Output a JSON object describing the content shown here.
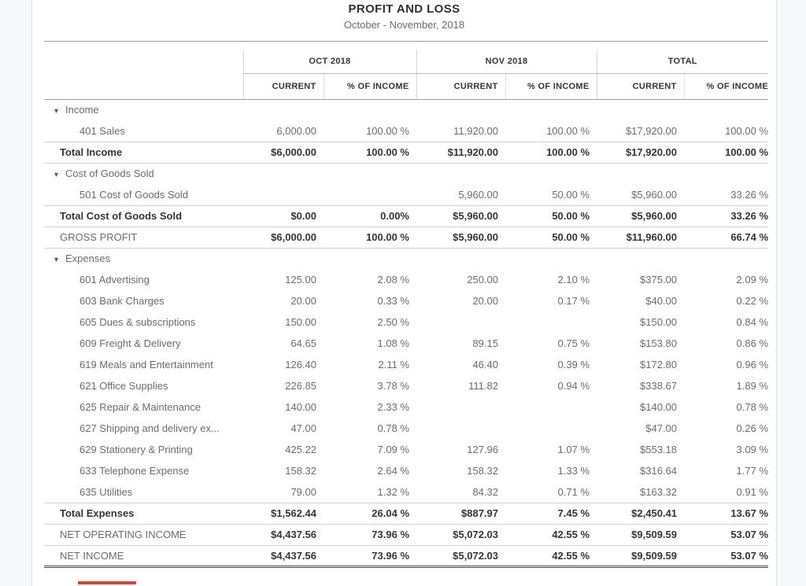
{
  "report": {
    "title": "PROFIT AND LOSS",
    "subtitle": "October - November, 2018"
  },
  "table": {
    "column_groups": [
      {
        "label": "OCT 2018"
      },
      {
        "label": "NOV 2018"
      },
      {
        "label": "TOTAL"
      }
    ],
    "sub_headers": [
      "CURRENT",
      "% OF INCOME"
    ],
    "rows": [
      {
        "type": "section",
        "label": "Income",
        "cells": [
          "",
          "",
          "",
          "",
          "",
          ""
        ]
      },
      {
        "type": "account",
        "label": "401 Sales",
        "cells": [
          "6,000.00",
          "100.00 %",
          "11,920.00",
          "100.00 %",
          "$17,920.00",
          "100.00 %"
        ]
      },
      {
        "type": "total",
        "label": "Total Income",
        "cells": [
          "$6,000.00",
          "100.00 %",
          "$11,920.00",
          "100.00 %",
          "$17,920.00",
          "100.00 %"
        ]
      },
      {
        "type": "section",
        "label": "Cost of Goods Sold",
        "cells": [
          "",
          "",
          "",
          "",
          "",
          ""
        ]
      },
      {
        "type": "account",
        "label": "501 Cost of Goods Sold",
        "cells": [
          "",
          "",
          "5,960.00",
          "50.00 %",
          "$5,960.00",
          "33.26 %"
        ]
      },
      {
        "type": "total",
        "label": "Total Cost of Goods Sold",
        "cells": [
          "$0.00",
          "0.00%",
          "$5,960.00",
          "50.00 %",
          "$5,960.00",
          "33.26 %"
        ]
      },
      {
        "type": "summary",
        "label": "GROSS PROFIT",
        "cells": [
          "$6,000.00",
          "100.00 %",
          "$5,960.00",
          "50.00 %",
          "$11,960.00",
          "66.74 %"
        ]
      },
      {
        "type": "section",
        "label": "Expenses",
        "cells": [
          "",
          "",
          "",
          "",
          "",
          ""
        ]
      },
      {
        "type": "account",
        "label": "601 Advertising",
        "cells": [
          "125.00",
          "2.08 %",
          "250.00",
          "2.10 %",
          "$375.00",
          "2.09 %"
        ]
      },
      {
        "type": "account",
        "label": "603 Bank Charges",
        "cells": [
          "20.00",
          "0.33 %",
          "20.00",
          "0.17 %",
          "$40.00",
          "0.22 %"
        ]
      },
      {
        "type": "account",
        "label": "605 Dues & subscriptions",
        "cells": [
          "150.00",
          "2.50 %",
          "",
          "",
          "$150.00",
          "0.84 %"
        ]
      },
      {
        "type": "account",
        "label": "609 Freight & Delivery",
        "cells": [
          "64.65",
          "1.08 %",
          "89.15",
          "0.75 %",
          "$153.80",
          "0.86 %"
        ]
      },
      {
        "type": "account",
        "label": "619 Meals and Entertainment",
        "cells": [
          "126.40",
          "2.11 %",
          "46.40",
          "0.39 %",
          "$172.80",
          "0.96 %"
        ]
      },
      {
        "type": "account",
        "label": "621 Office Supplies",
        "cells": [
          "226.85",
          "3.78 %",
          "111.82",
          "0.94 %",
          "$338.67",
          "1.89 %"
        ]
      },
      {
        "type": "account",
        "label": "625 Repair & Maintenance",
        "cells": [
          "140.00",
          "2.33 %",
          "",
          "",
          "$140.00",
          "0.78 %"
        ]
      },
      {
        "type": "account",
        "label": "627 Shipping and delivery ex...",
        "cells": [
          "47.00",
          "0.78 %",
          "",
          "",
          "$47.00",
          "0.26 %"
        ]
      },
      {
        "type": "account",
        "label": "629 Stationery & Printing",
        "cells": [
          "425.22",
          "7.09 %",
          "127.96",
          "1.07 %",
          "$553.18",
          "3.09 %"
        ]
      },
      {
        "type": "account",
        "label": "633 Telephone Expense",
        "cells": [
          "158.32",
          "2.64 %",
          "158.32",
          "1.33 %",
          "$316.64",
          "1.77 %"
        ]
      },
      {
        "type": "account",
        "label": "635 Utilities",
        "cells": [
          "79.00",
          "1.32 %",
          "84.32",
          "0.71 %",
          "$163.32",
          "0.91 %"
        ]
      },
      {
        "type": "total",
        "label": "Total Expenses",
        "cells": [
          "$1,562.44",
          "26.04 %",
          "$887.97",
          "7.45 %",
          "$2,450.41",
          "13.67 %"
        ]
      },
      {
        "type": "summary",
        "label": "NET OPERATING INCOME",
        "cells": [
          "$4,437.56",
          "73.96 %",
          "$5,072.03",
          "42.55 %",
          "$9,509.59",
          "53.07 %"
        ]
      },
      {
        "type": "summary",
        "label": "NET INCOME",
        "cells": [
          "$4,437.56",
          "73.96 %",
          "$5,072.03",
          "42.55 %",
          "$9,509.59",
          "53.07 %"
        ],
        "last": true
      }
    ]
  },
  "icons": {
    "collapse_triangle": "▾"
  },
  "colors": {
    "text_dark": "#33353a",
    "text_gray": "#6b6c72",
    "rule_dark": "#9b9ea3",
    "rule_light": "#cfd2d6",
    "accent_bar": "#d84734"
  }
}
